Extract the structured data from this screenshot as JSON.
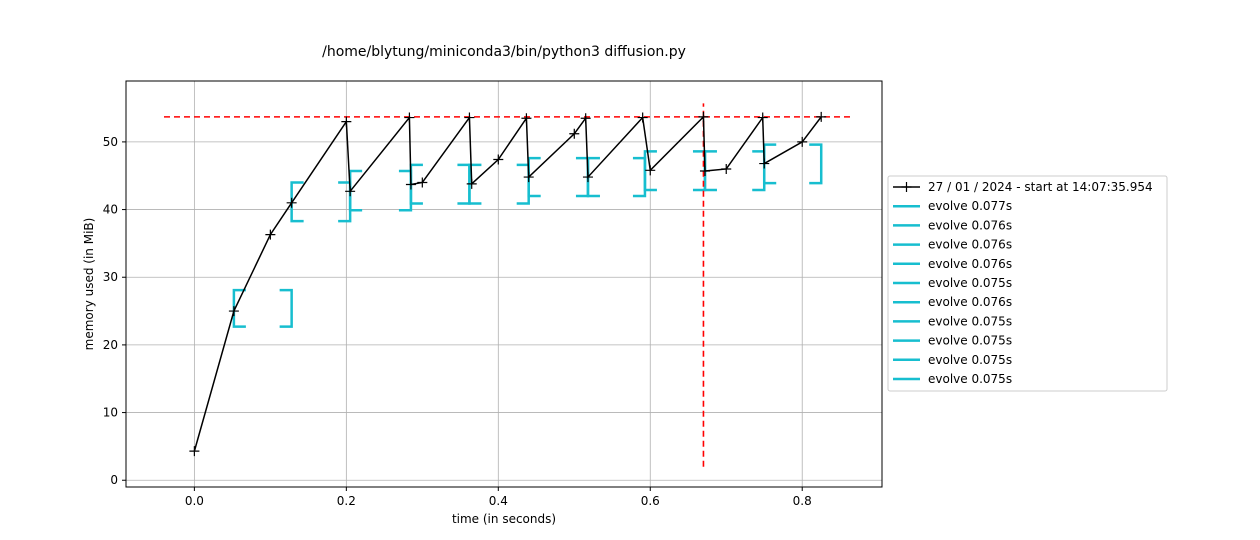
{
  "chart_data": {
    "type": "line",
    "title": "/home/blytung/miniconda3/bin/python3 diffusion.py",
    "xlabel": "time (in seconds)",
    "ylabel": "memory used (in MiB)",
    "xlim": [
      -0.09,
      0.905
    ],
    "ylim": [
      -1,
      59
    ],
    "grid": true,
    "legend_placement": "right",
    "x_ticks": [
      0.0,
      0.2,
      0.4,
      0.6,
      0.8
    ],
    "x_tick_labels": [
      "0.0",
      "0.2",
      "0.4",
      "0.6",
      "0.8"
    ],
    "y_ticks": [
      0,
      10,
      20,
      30,
      40,
      50
    ],
    "y_tick_labels": [
      "0",
      "10",
      "20",
      "30",
      "40",
      "50"
    ],
    "series": [
      {
        "name": "27 / 01 / 2024 - start at 14:07:35.954",
        "color": "#000000",
        "marker": "+",
        "x": [
          0.0,
          0.052,
          0.1,
          0.128,
          0.2,
          0.205,
          0.283,
          0.285,
          0.3,
          0.362,
          0.365,
          0.4,
          0.437,
          0.44,
          0.5,
          0.515,
          0.518,
          0.59,
          0.6,
          0.67,
          0.672,
          0.7,
          0.748,
          0.75,
          0.8,
          0.825
        ],
        "y": [
          4.3,
          25.0,
          36.3,
          41.0,
          53.0,
          42.7,
          53.6,
          43.7,
          44.0,
          53.6,
          43.8,
          47.4,
          53.5,
          44.8,
          51.2,
          53.5,
          44.8,
          53.6,
          45.8,
          53.7,
          45.7,
          46.0,
          53.6,
          46.8,
          50.0,
          53.7
        ]
      }
    ],
    "brackets": [
      {
        "name": "evolve 0.077s",
        "start": 0.052,
        "end": 0.128,
        "low": 22.7,
        "high": 28.1
      },
      {
        "name": "evolve 0.076s",
        "start": 0.128,
        "end": 0.205,
        "low": 38.3,
        "high": 44.0
      },
      {
        "name": "evolve 0.076s",
        "start": 0.205,
        "end": 0.285,
        "low": 39.9,
        "high": 45.7
      },
      {
        "name": "evolve 0.076s",
        "start": 0.285,
        "end": 0.362,
        "low": 40.9,
        "high": 46.6
      },
      {
        "name": "evolve 0.075s",
        "start": 0.362,
        "end": 0.44,
        "low": 40.9,
        "high": 46.6
      },
      {
        "name": "evolve 0.076s",
        "start": 0.44,
        "end": 0.518,
        "low": 42.0,
        "high": 47.6
      },
      {
        "name": "evolve 0.075s",
        "start": 0.518,
        "end": 0.593,
        "low": 42.0,
        "high": 47.6
      },
      {
        "name": "evolve 0.075s",
        "start": 0.593,
        "end": 0.672,
        "low": 42.9,
        "high": 48.6
      },
      {
        "name": "evolve 0.075s",
        "start": 0.672,
        "end": 0.75,
        "low": 42.9,
        "high": 48.6
      },
      {
        "name": "evolve 0.075s",
        "start": 0.75,
        "end": 0.825,
        "low": 43.9,
        "high": 49.6
      }
    ],
    "bracket_color": "#17becf",
    "max_memory_line": {
      "y": 53.7,
      "x_from": -0.04,
      "x_to": 0.865,
      "color": "#ff0000"
    },
    "max_time_line": {
      "x": 0.67,
      "y_from": 2.0,
      "y_to": 55.7,
      "color": "#ff0000"
    }
  }
}
